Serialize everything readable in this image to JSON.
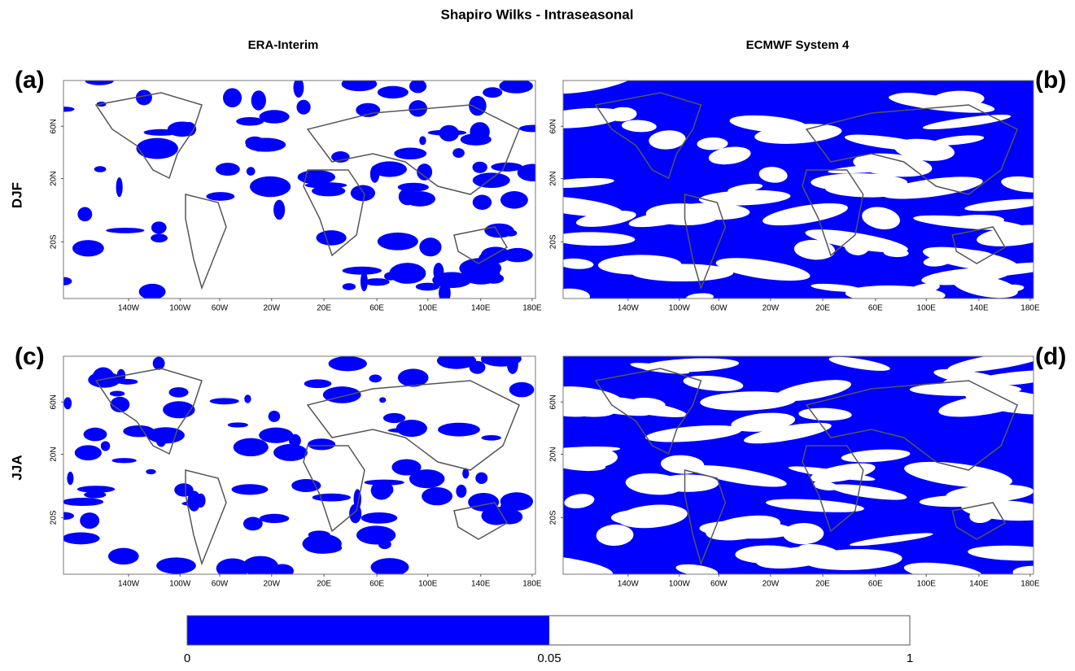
{
  "title": "Shapiro Wilks - Intraseasonal",
  "columns": [
    "ERA-Interim",
    "ECMWF System 4"
  ],
  "rows": [
    "DJF",
    "JJA"
  ],
  "panels": [
    {
      "label": "(a)",
      "x_ticks": [
        "140W",
        "100W",
        "60W",
        "20W",
        "20E",
        "60E",
        "100E",
        "140E",
        "180E"
      ],
      "y_ticks": [
        "60N",
        "20N",
        "20S"
      ]
    },
    {
      "label": "(b)",
      "x_ticks": [
        "140W",
        "100W",
        "60W",
        "20W",
        "20E",
        "60E",
        "100E",
        "140E",
        "180E"
      ],
      "y_ticks": [
        "60N",
        "20N",
        "20S"
      ]
    },
    {
      "label": "(c)",
      "x_ticks": [
        "140W",
        "100W",
        "60W",
        "20W",
        "20E",
        "60E",
        "100E",
        "140E",
        "180E"
      ],
      "y_ticks": [
        "60N",
        "20N",
        "20S"
      ]
    },
    {
      "label": "(d)",
      "x_ticks": [
        "140W",
        "100W",
        "60W",
        "20W",
        "20E",
        "60E",
        "100E",
        "140E",
        "180E"
      ],
      "y_ticks": [
        "60N",
        "20N",
        "20S"
      ]
    }
  ],
  "colorbar": {
    "labels": [
      "0",
      "0.05",
      "1"
    ]
  }
}
